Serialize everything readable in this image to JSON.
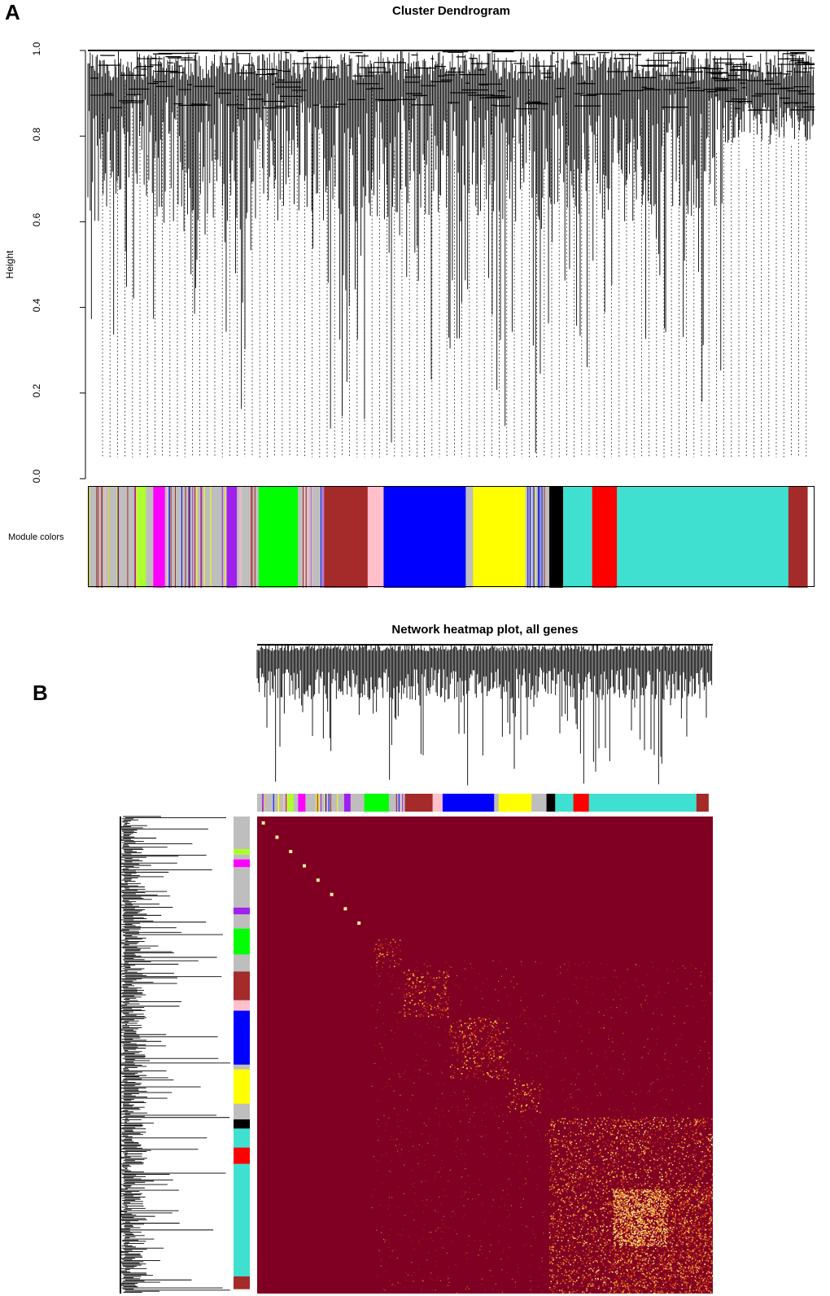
{
  "panel_a": {
    "letter": "A",
    "title": "Cluster Dendrogram",
    "ylabel": "Height",
    "row_label": "Module colors"
  },
  "panel_b": {
    "letter": "B",
    "title": "Network heatmap plot, all genes"
  },
  "colors": {
    "grey": "#bebebe",
    "greenyellow": "#adff2f",
    "magenta": "#ff00ff",
    "purple": "#a020f0",
    "green": "#00ff00",
    "brown": "#a52a2a",
    "pink": "#ffc0cb",
    "blue": "#0000ff",
    "yellow": "#ffff00",
    "black": "#000000",
    "turquoise": "#40e0d0",
    "red": "#ff0000",
    "heatmap_background": "#7f0022",
    "heatmap_hot": "#ffd84a"
  },
  "chart_data": [
    {
      "type": "dendrogram",
      "title": "Cluster Dendrogram",
      "xlabel": "",
      "ylabel": "Height",
      "ylim": [
        0.0,
        1.0
      ],
      "yticks": [
        "0.0",
        "0.2",
        "0.4",
        "0.6",
        "0.8",
        "1.0"
      ],
      "module_color_order": [
        {
          "module": "grey",
          "fraction": 0.068
        },
        {
          "module": "greenyellow",
          "fraction": 0.012
        },
        {
          "module": "grey",
          "fraction": 0.01
        },
        {
          "module": "magenta",
          "fraction": 0.016
        },
        {
          "module": "grey",
          "fraction": 0.085
        },
        {
          "module": "purple",
          "fraction": 0.014
        },
        {
          "module": "grey",
          "fraction": 0.03
        },
        {
          "module": "green",
          "fraction": 0.054
        },
        {
          "module": "grey",
          "fraction": 0.036
        },
        {
          "module": "brown",
          "fraction": 0.06
        },
        {
          "module": "pink",
          "fraction": 0.022
        },
        {
          "module": "blue",
          "fraction": 0.113
        },
        {
          "module": "grey",
          "fraction": 0.01
        },
        {
          "module": "yellow",
          "fraction": 0.072
        },
        {
          "module": "grey",
          "fraction": 0.033
        },
        {
          "module": "black",
          "fraction": 0.019
        },
        {
          "module": "turquoise",
          "fraction": 0.04
        },
        {
          "module": "red",
          "fraction": 0.034
        },
        {
          "module": "turquoise",
          "fraction": 0.236
        },
        {
          "module": "brown",
          "fraction": 0.026
        }
      ]
    },
    {
      "type": "heatmap",
      "title": "Network heatmap plot, all genes",
      "modules_on_diagonal": [
        {
          "module": "green",
          "start": 0.255,
          "end": 0.315,
          "intensity": 0.7
        },
        {
          "module": "brown",
          "start": 0.32,
          "end": 0.42,
          "intensity": 0.8
        },
        {
          "module": "blue",
          "start": 0.42,
          "end": 0.55,
          "intensity": 0.75
        },
        {
          "module": "yellow",
          "start": 0.55,
          "end": 0.62,
          "intensity": 0.6
        },
        {
          "module": "turquoise",
          "start": 0.78,
          "end": 1.0,
          "intensity": 0.85
        }
      ]
    }
  ]
}
